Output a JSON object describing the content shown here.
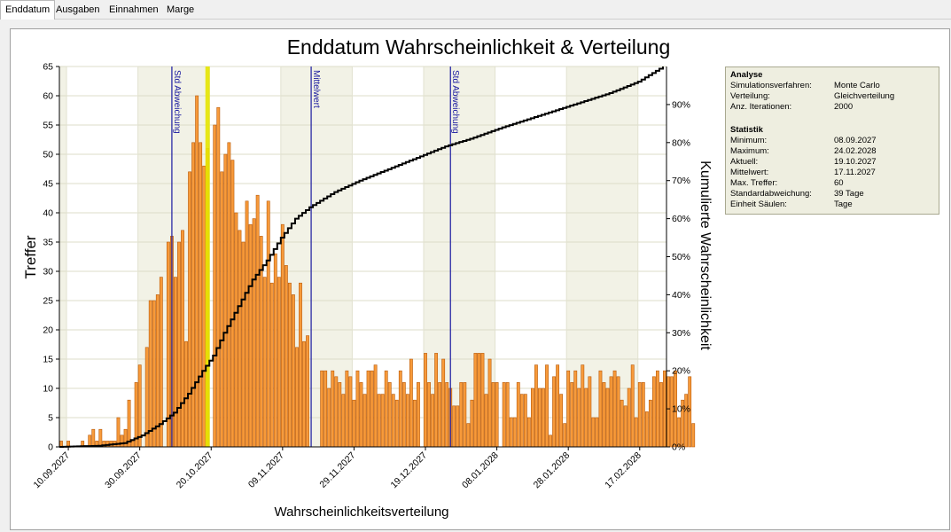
{
  "tabs": [
    {
      "label": "Enddatum",
      "active": true
    },
    {
      "label": "Ausgaben",
      "active": false
    },
    {
      "label": "Einnahmen",
      "active": false
    },
    {
      "label": "Marge",
      "active": false
    }
  ],
  "colors": {
    "bar_fill": "#f79a3a",
    "bar_stroke": "#b85a0a",
    "cumulative": "#000000",
    "marker": "#1a1aa0",
    "highlight": "#e6e600",
    "band_dark": "#f2f2e6",
    "band_light": "#ffffff"
  },
  "chart_data": {
    "type": "bar",
    "title": "Enddatum Wahrscheinlichkeit & Verteilung",
    "xlabel": "Wahrscheinlichkeitsverteilung",
    "ylabel": "Treffer",
    "y2label": "Kumulierte Wahrscheinlichkeit",
    "x_start": "08.09.2027",
    "x_end": "24.02.2028",
    "x_tick_labels": [
      "10.09.2027",
      "30.09.2027",
      "20.10.2027",
      "09.11.2027",
      "29.11.2027",
      "19.12.2027",
      "08.01.2028",
      "28.01.2028",
      "17.02.2028"
    ],
    "ylim": [
      0,
      65
    ],
    "y_ticks": [
      0,
      5,
      10,
      15,
      20,
      25,
      30,
      35,
      40,
      45,
      50,
      55,
      60,
      65
    ],
    "y2lim": [
      0,
      100
    ],
    "y2_ticks": [
      "0%",
      "10%",
      "20%",
      "30%",
      "40%",
      "50%",
      "60%",
      "70%",
      "80%",
      "90%"
    ],
    "grid": true,
    "series": [
      {
        "values": [
          1,
          0,
          1,
          0,
          0,
          0,
          1,
          0,
          2,
          3,
          1,
          3,
          1,
          1,
          1,
          1,
          5,
          2,
          3,
          8,
          1,
          11,
          14,
          0,
          17,
          25,
          25,
          26,
          29,
          0,
          35,
          36,
          29,
          35,
          37,
          18,
          47,
          52,
          60,
          52,
          48,
          51,
          0,
          55,
          58,
          47,
          50,
          52,
          49,
          40,
          37,
          35,
          42,
          38,
          39,
          43,
          36,
          29,
          42,
          28,
          33,
          29,
          38,
          31,
          28,
          26,
          17,
          28,
          18,
          19,
          0,
          0,
          0,
          13,
          13,
          10,
          13,
          12,
          11,
          9,
          13,
          12,
          8,
          13,
          11,
          9,
          13,
          13,
          14,
          9,
          9,
          13,
          11,
          9,
          8,
          13,
          11,
          9,
          15,
          8,
          11,
          0,
          16,
          11,
          9,
          16,
          11,
          15,
          11,
          10,
          7,
          7,
          11,
          11,
          4,
          8,
          16,
          16,
          16,
          9,
          15,
          11,
          11,
          0,
          11,
          11,
          5,
          5,
          11,
          9,
          9,
          5,
          10,
          14,
          10,
          10,
          14,
          2,
          12,
          14,
          9,
          4,
          13,
          11,
          13,
          10,
          14,
          10,
          12,
          5,
          5,
          13,
          11,
          10,
          12,
          13,
          12,
          8,
          7,
          10,
          14,
          5,
          11,
          11,
          6,
          8,
          12,
          13,
          11,
          13,
          12,
          12,
          13,
          5,
          8,
          9,
          12,
          4
        ]
      }
    ],
    "cumulative": [
      {
        "date": "08.09.2027",
        "p": 0
      },
      {
        "date": "19.09.2027",
        "p": 0.3
      },
      {
        "date": "26.09.2027",
        "p": 1
      },
      {
        "date": "01.10.2027",
        "p": 3
      },
      {
        "date": "06.10.2027",
        "p": 6
      },
      {
        "date": "10.10.2027",
        "p": 9
      },
      {
        "date": "14.10.2027",
        "p": 14
      },
      {
        "date": "18.10.2027",
        "p": 20
      },
      {
        "date": "21.10.2027",
        "p": 24
      },
      {
        "date": "24.10.2027",
        "p": 30
      },
      {
        "date": "28.10.2027",
        "p": 37
      },
      {
        "date": "01.11.2027",
        "p": 44
      },
      {
        "date": "05.11.2027",
        "p": 49
      },
      {
        "date": "09.11.2027",
        "p": 55
      },
      {
        "date": "13.11.2027",
        "p": 60
      },
      {
        "date": "17.11.2027",
        "p": 63
      },
      {
        "date": "24.11.2027",
        "p": 67
      },
      {
        "date": "01.12.2027",
        "p": 70
      },
      {
        "date": "09.12.2027",
        "p": 73
      },
      {
        "date": "17.12.2027",
        "p": 76
      },
      {
        "date": "25.12.2027",
        "p": 79
      },
      {
        "date": "01.01.2028",
        "p": 81
      },
      {
        "date": "10.01.2028",
        "p": 84
      },
      {
        "date": "20.01.2028",
        "p": 87
      },
      {
        "date": "30.01.2028",
        "p": 90
      },
      {
        "date": "09.02.2028",
        "p": 93
      },
      {
        "date": "17.02.2028",
        "p": 96
      },
      {
        "date": "24.02.2028",
        "p": 100
      }
    ],
    "markers": [
      {
        "label": "Std Abweichung",
        "date": "09.10.2027"
      },
      {
        "label": "Mittelwert",
        "date": "17.11.2027"
      },
      {
        "label": "Std Abweichung",
        "date": "26.12.2027"
      }
    ],
    "highlight_date": "19.10.2027"
  },
  "stats": {
    "analysis_header": "Analyse",
    "analysis": [
      {
        "key": "Simulationsverfahren:",
        "value": "Monte Carlo"
      },
      {
        "key": "Verteilung:",
        "value": "Gleichverteilung"
      },
      {
        "key": "Anz. Iterationen:",
        "value": "2000"
      }
    ],
    "statistics_header": "Statistik",
    "statistics": [
      {
        "key": "Minimum:",
        "value": "08.09.2027"
      },
      {
        "key": "Maximum:",
        "value": "24.02.2028"
      },
      {
        "key": "Aktuell:",
        "value": "19.10.2027"
      },
      {
        "key": "Mittelwert:",
        "value": "17.11.2027"
      },
      {
        "key": "Max. Treffer:",
        "value": "60"
      },
      {
        "key": "Standardabweichung:",
        "value": "39 Tage"
      },
      {
        "key": "Einheit Säulen:",
        "value": "Tage"
      }
    ]
  }
}
